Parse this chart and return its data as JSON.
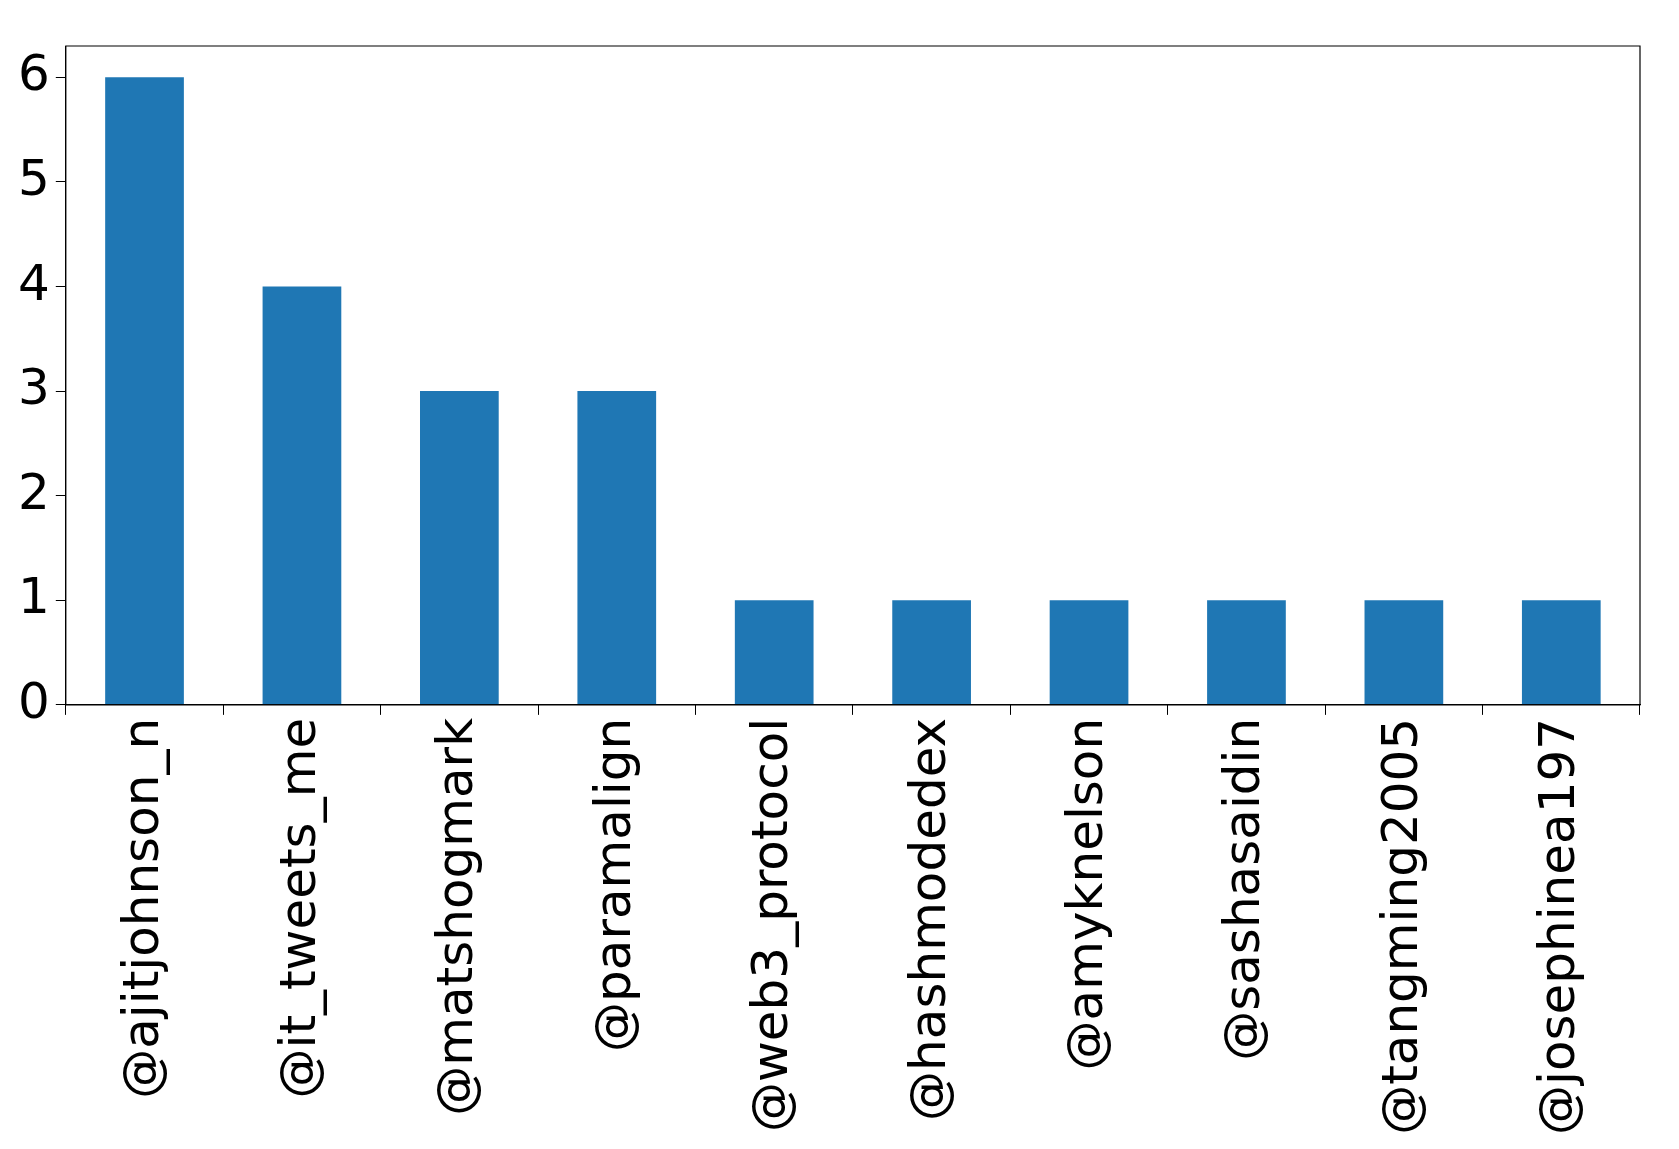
{
  "chart_data": {
    "type": "bar",
    "categories": [
      "@ajitjohnson_n",
      "@it_tweets_me",
      "@matshogmark",
      "@paramalign",
      "@web3_protocol",
      "@hashmodedex",
      "@amyknelson",
      "@sashasaidin",
      "@tangming2005",
      "@josephinea197"
    ],
    "values": [
      6,
      4,
      3,
      3,
      1,
      1,
      1,
      1,
      1,
      1
    ],
    "color": "#1f77b4",
    "ylim": [
      0,
      6.3
    ],
    "yticks": [
      0,
      1,
      2,
      3,
      4,
      5,
      6
    ],
    "grid": false,
    "legend": false
  }
}
